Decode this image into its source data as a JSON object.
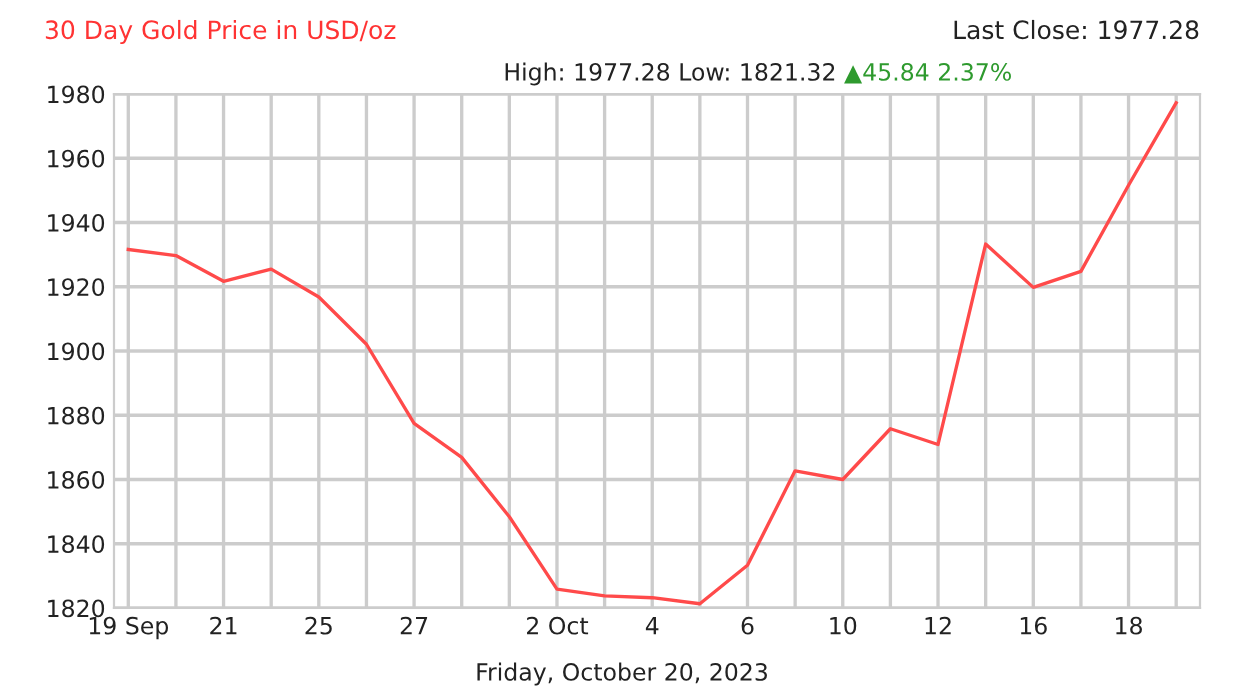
{
  "chart_data": {
    "type": "line",
    "title": "30 Day Gold Price in USD/oz",
    "categories": [
      "19 Sep",
      null,
      "21",
      null,
      "25",
      null,
      "27",
      null,
      null,
      "2 Oct",
      null,
      "4",
      null,
      "6",
      null,
      "10",
      null,
      "12",
      null,
      "16",
      null,
      "18",
      null
    ],
    "series": [
      {
        "color": "#ff4a4a",
        "values": [
          1931.6,
          1929.7,
          1921.7,
          1925.5,
          1916.8,
          1902.1,
          1877.5,
          1866.9,
          1848.4,
          1825.9,
          1823.8,
          1823.2,
          1821.32,
          1833.3,
          1862.7,
          1860.0,
          1875.8,
          1870.9,
          1933.3,
          1919.8,
          1924.8,
          1951.6,
          1977.28
        ]
      }
    ],
    "ylim": [
      1820,
      1980
    ],
    "yticks": [
      1820,
      1840,
      1860,
      1880,
      1900,
      1920,
      1940,
      1960,
      1980
    ],
    "grid": true,
    "legend": false,
    "marker": "none",
    "line_style": "solid",
    "annotations": [
      "Last Close: 1977.28",
      "High: 1977.28 Low: 1821.32",
      "▲45.84 2.37%",
      "Friday, October 20, 2023"
    ]
  }
}
